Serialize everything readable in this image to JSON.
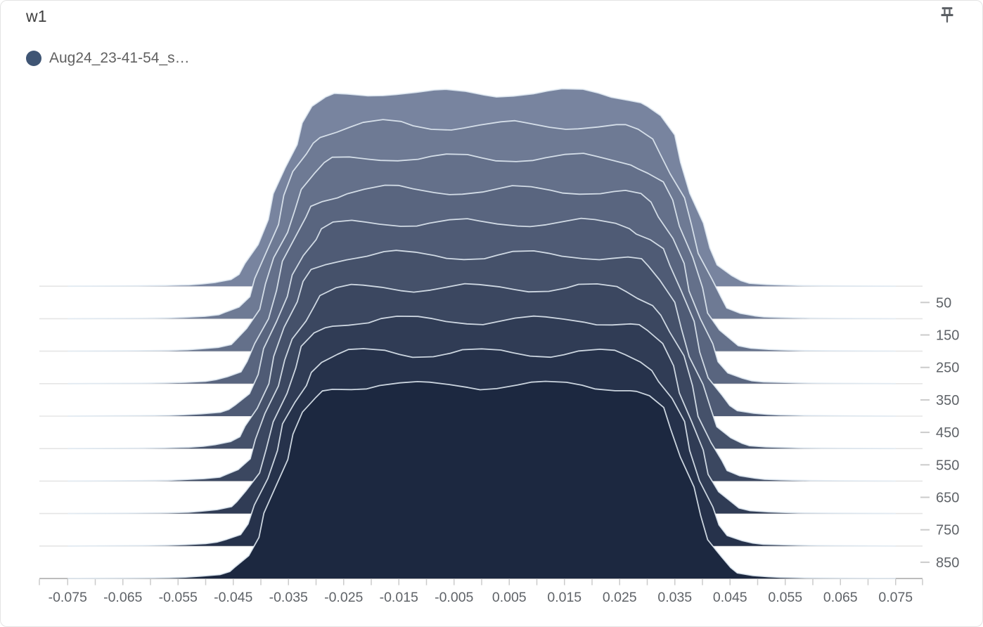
{
  "header": {
    "title": "w1",
    "pin_tooltip": "Pin card"
  },
  "legend": {
    "items": [
      {
        "label": "Aug24_23-41-54_s…",
        "color": "#3f5574"
      }
    ]
  },
  "chart_data": {
    "type": "area",
    "subtype": "tensorboard-offset-histogram-ridges",
    "title": "w1",
    "series": [
      {
        "name": "Aug24_23-41-54_s…",
        "color": "#3f5574"
      }
    ],
    "x_axis": {
      "range": [
        -0.075,
        0.075
      ],
      "tick_labels": [
        "-0.075",
        "-0.065",
        "-0.055",
        "-0.045",
        "-0.035",
        "-0.025",
        "-0.015",
        "-0.005",
        "0.005",
        "0.015",
        "0.025",
        "0.035",
        "0.045",
        "0.055",
        "0.065",
        "0.075"
      ],
      "minor_tick_step": 0.005
    },
    "step_axis": {
      "side": "right",
      "tick_labels": [
        "50",
        "150",
        "250",
        "350",
        "450",
        "550",
        "650",
        "750",
        "850"
      ],
      "gridline_steps": [
        0,
        100,
        200,
        300,
        400,
        500,
        600,
        700,
        800
      ]
    },
    "histogram_steps": [
      0,
      100,
      200,
      300,
      400,
      500,
      600,
      700,
      800,
      900
    ],
    "peak_height_steps": 600,
    "distribution_outline": [
      [
        -0.075,
        0
      ],
      [
        -0.068,
        0.001
      ],
      [
        -0.062,
        0.002
      ],
      [
        -0.057,
        0.004
      ],
      [
        -0.0535,
        0.007
      ],
      [
        -0.0505,
        0.012
      ],
      [
        -0.0478,
        0.02
      ],
      [
        -0.0458,
        0.035
      ],
      [
        -0.0441,
        0.06
      ],
      [
        -0.0424,
        0.115
      ],
      [
        -0.0407,
        0.21
      ],
      [
        -0.039,
        0.34
      ],
      [
        -0.0373,
        0.48
      ],
      [
        -0.0356,
        0.62
      ],
      [
        -0.0339,
        0.74
      ],
      [
        -0.0322,
        0.84
      ],
      [
        -0.0305,
        0.91
      ],
      [
        -0.0288,
        0.95
      ],
      [
        -0.0266,
        0.975
      ],
      [
        -0.024,
        0.988
      ],
      [
        -0.021,
        0.994
      ],
      [
        -0.018,
        1.0
      ],
      [
        -0.015,
        0.996
      ],
      [
        -0.012,
        0.99
      ],
      [
        -0.009,
        0.988
      ],
      [
        -0.006,
        0.99
      ],
      [
        -0.003,
        0.992
      ],
      [
        0.0,
        0.99
      ],
      [
        0.003,
        0.992
      ],
      [
        0.006,
        0.995
      ],
      [
        0.009,
        0.993
      ],
      [
        0.012,
        0.99
      ],
      [
        0.015,
        0.992
      ],
      [
        0.018,
        0.994
      ],
      [
        0.021,
        0.99
      ],
      [
        0.024,
        0.985
      ],
      [
        0.0265,
        0.975
      ],
      [
        0.0285,
        0.955
      ],
      [
        0.0305,
        0.92
      ],
      [
        0.0325,
        0.86
      ],
      [
        0.0345,
        0.76
      ],
      [
        0.0363,
        0.63
      ],
      [
        0.038,
        0.48
      ],
      [
        0.0397,
        0.33
      ],
      [
        0.0414,
        0.2
      ],
      [
        0.0431,
        0.11
      ],
      [
        0.0449,
        0.055
      ],
      [
        0.0468,
        0.028
      ],
      [
        0.049,
        0.015
      ],
      [
        0.0515,
        0.009
      ],
      [
        0.0545,
        0.006
      ],
      [
        0.059,
        0.003
      ],
      [
        0.065,
        0.0015
      ],
      [
        0.075,
        0
      ]
    ],
    "ridge_fills": [
      "#78849f",
      "#6e7a94",
      "#64708a",
      "#59657f",
      "#4f5b75",
      "#45516a",
      "#3b4760",
      "#303c55",
      "#26324b",
      "#1c2840"
    ],
    "outline_color": "#e3ecf4",
    "gridline_color": "#e5e5e5",
    "axis_line_color": "#a6a6a6",
    "tick_color": "#cbcbcb",
    "tick_label_color": "#5f6368",
    "legend_position": "top-left",
    "grid": "horizontal-only"
  }
}
